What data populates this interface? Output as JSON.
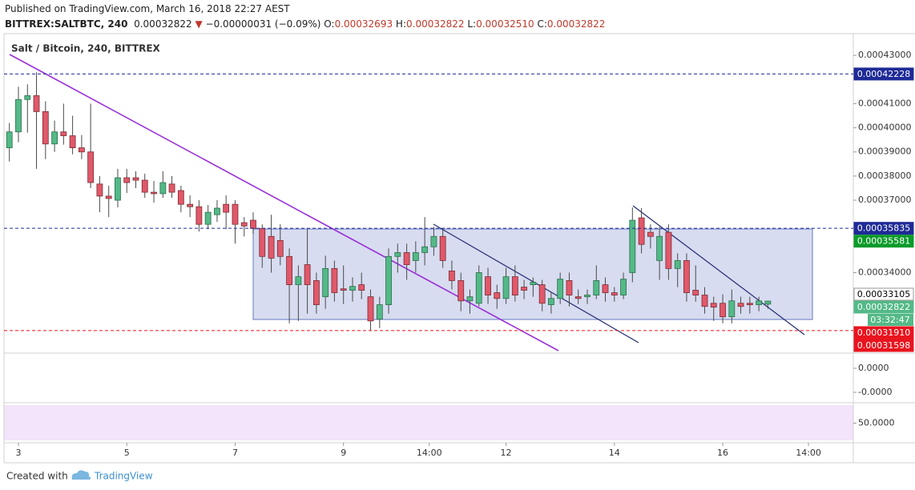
{
  "header": {
    "published": "Published on TradingView.com, March 16, 2018 22:27 AEST",
    "symbol": "BITTREX:SALTBTC, 240",
    "last": "0.00032822",
    "arrow": "▼",
    "change": "−0.00000031 (−0.09%)",
    "ohlc": [
      {
        "key": "O:",
        "value": "0.00032693"
      },
      {
        "key": "H:",
        "value": "0.00032822"
      },
      {
        "key": "L:",
        "value": "0.00032510"
      },
      {
        "key": "C:",
        "value": "0.00032822"
      }
    ]
  },
  "footer": {
    "created": "Created with",
    "brand": "TradingView"
  },
  "chart_data": [
    {
      "type": "candlestick",
      "title": "Salt / Bitcoin, 240, BITTREX",
      "up_color": "#53b987",
      "down_color": "#e0596a",
      "x": [
        -0.167,
        0,
        0.167,
        0.333,
        0.5,
        0.667,
        0.833,
        1,
        1.167,
        1.333,
        1.5,
        1.667,
        1.833,
        2,
        2.167,
        2.333,
        2.5,
        2.667,
        2.833,
        3,
        3.167,
        3.333,
        3.5,
        3.667,
        3.833,
        4,
        4.167,
        4.333,
        4.5,
        4.667,
        4.833,
        5,
        5.167,
        5.333,
        5.5,
        5.667,
        5.833,
        6,
        6.167,
        6.333,
        6.5,
        6.667,
        6.833,
        7,
        7.167,
        7.333,
        7.5,
        7.667,
        7.833,
        8,
        8.167,
        8.333,
        8.5,
        8.667,
        8.833,
        9,
        9.167,
        9.333,
        9.5,
        9.667,
        9.833,
        10,
        10.167,
        10.333,
        10.5,
        10.667,
        10.833,
        11,
        11.167,
        11.333,
        11.5,
        11.667,
        11.833,
        12,
        12.167,
        12.333,
        12.5,
        12.667,
        12.833,
        13,
        13.167,
        13.333,
        13.5,
        13.667,
        13.833
      ],
      "open": [
        0.0003917,
        0.0003983,
        0.0004117,
        0.0004133,
        0.0004067,
        0.0003933,
        0.0003983,
        0.0003967,
        0.0003917,
        0.00039,
        0.0003767,
        0.0003717,
        0.00037,
        0.0003793,
        0.0003793,
        0.0003783,
        0.0003733,
        0.0003727,
        0.0003767,
        0.000374,
        0.0003683,
        0.0003673,
        0.00036,
        0.000364,
        0.0003683,
        0.0003683,
        0.0003607,
        0.0003617,
        0.0003583,
        0.000355,
        0.0003533,
        0.0003467,
        0.000335,
        0.0003433,
        0.0003367,
        0.00033,
        0.0003417,
        0.0003333,
        0.0003327,
        0.000335,
        0.00033,
        0.0003207,
        0.0003267,
        0.0003467,
        0.0003483,
        0.000345,
        0.0003483,
        0.0003507,
        0.000355,
        0.0003407,
        0.0003367,
        0.0003283,
        0.0003273,
        0.0003383,
        0.0003317,
        0.0003293,
        0.0003383,
        0.000334,
        0.000335,
        0.000335,
        0.0003267,
        0.0003293,
        0.0003367,
        0.00033,
        0.00033,
        0.0003307,
        0.000335,
        0.0003317,
        0.0003307,
        0.00034,
        0.0003627,
        0.0003567,
        0.000345,
        0.0003567,
        0.0003417,
        0.000345,
        0.0003327,
        0.0003307,
        0.0003273,
        0.0003273,
        0.0003217,
        0.0003273,
        0.0003273,
        0.0003267,
        0.00032693
      ],
      "high": [
        0.000402,
        0.000417,
        0.000418,
        0.000423,
        0.000411,
        0.000403,
        0.00041,
        0.000405,
        0.000397,
        0.00041,
        0.00038,
        0.000376,
        0.000383,
        0.000383,
        0.000382,
        0.000381,
        0.000378,
        0.000382,
        0.00038,
        0.000376,
        0.000372,
        0.00037,
        0.000368,
        0.00037,
        0.000372,
        0.00037,
        0.000363,
        0.000365,
        0.00036,
        0.000364,
        0.00036,
        0.00035,
        0.000343,
        0.000358,
        0.00034,
        0.000347,
        0.000345,
        0.000343,
        0.000338,
        0.00034,
        0.000333,
        0.00033,
        0.00035,
        0.000352,
        0.000352,
        0.000353,
        0.000363,
        0.000359,
        0.000358,
        0.000345,
        0.00034,
        0.000333,
        0.000343,
        0.000342,
        0.000335,
        0.000342,
        0.000343,
        0.000337,
        0.000338,
        0.000337,
        0.000332,
        0.00034,
        0.00034,
        0.000333,
        0.000333,
        0.000343,
        0.000338,
        0.000334,
        0.00034,
        0.000367,
        0.0003667,
        0.00036,
        0.000359,
        0.00036,
        0.000348,
        0.000348,
        0.000343,
        0.000334,
        0.00033,
        0.000331,
        0.000333,
        0.00033,
        0.00033,
        0.00033,
        0.00032822
      ],
      "low": [
        0.000386,
        0.000394,
        0.000398,
        0.000383,
        0.000387,
        0.00039,
        0.000393,
        0.000389,
        0.000387,
        0.000375,
        0.000365,
        0.000363,
        0.000367,
        0.000373,
        0.000375,
        0.000371,
        0.000369,
        0.000371,
        0.000371,
        0.000365,
        0.000363,
        0.000357,
        0.000358,
        0.000361,
        0.000358,
        0.000352,
        0.000355,
        0.000356,
        0.000342,
        0.00034,
        0.000343,
        0.000319,
        0.00032,
        0.000323,
        0.000323,
        0.000325,
        0.000328,
        0.000327,
        0.000328,
        0.000329,
        0.000316,
        0.000317,
        0.000323,
        0.00034,
        0.000337,
        0.00034,
        0.000343,
        0.000347,
        0.000342,
        0.000333,
        0.000324,
        0.000323,
        0.000326,
        0.000327,
        0.000325,
        0.000327,
        0.000328,
        0.000329,
        0.00033,
        0.000324,
        0.000323,
        0.000327,
        0.000326,
        0.000327,
        0.000327,
        0.000329,
        0.000328,
        0.000328,
        0.000329,
        0.000336,
        0.000348,
        0.00035,
        0.000337,
        0.000337,
        0.000334,
        0.000328,
        0.000328,
        0.000323,
        0.00032,
        0.000319,
        0.000319,
        0.000323,
        0.000323,
        0.000324,
        0.0003251
      ],
      "close": [
        0.0003983,
        0.0004117,
        0.0004133,
        0.0004067,
        0.0003933,
        0.0003983,
        0.0003967,
        0.0003917,
        0.00039,
        0.0003773,
        0.0003717,
        0.0003707,
        0.0003793,
        0.0003773,
        0.0003783,
        0.0003733,
        0.0003727,
        0.0003773,
        0.0003733,
        0.0003683,
        0.0003673,
        0.00036,
        0.000365,
        0.0003667,
        0.000365,
        0.00036,
        0.0003593,
        0.0003583,
        0.0003467,
        0.000346,
        0.0003467,
        0.000335,
        0.0003383,
        0.000335,
        0.0003267,
        0.0003417,
        0.0003317,
        0.0003327,
        0.0003343,
        0.0003327,
        0.00032,
        0.0003267,
        0.0003467,
        0.0003483,
        0.0003433,
        0.0003483,
        0.0003507,
        0.000355,
        0.000345,
        0.0003367,
        0.0003283,
        0.00033,
        0.00034,
        0.0003307,
        0.0003293,
        0.0003383,
        0.0003307,
        0.0003327,
        0.000336,
        0.0003273,
        0.0003293,
        0.0003373,
        0.0003307,
        0.0003293,
        0.0003307,
        0.0003367,
        0.0003317,
        0.0003307,
        0.0003373,
        0.0003617,
        0.0003517,
        0.000355,
        0.000355,
        0.0003417,
        0.000345,
        0.0003317,
        0.0003307,
        0.000326,
        0.0003257,
        0.0003217,
        0.0003283,
        0.000326,
        0.0003267,
        0.0003283,
        0.00032822
      ],
      "xlim": [
        -0.266,
        15.41
      ],
      "ylim": [
        0.000307,
        0.000439
      ],
      "grid": false,
      "xticks": [
        {
          "value": 0,
          "label": "3"
        },
        {
          "value": 2,
          "label": "5"
        },
        {
          "value": 4,
          "label": "7"
        },
        {
          "value": 6,
          "label": "9"
        },
        {
          "value": 7.583,
          "label": "14:00"
        },
        {
          "value": 9,
          "label": "12"
        },
        {
          "value": 11,
          "label": "14"
        },
        {
          "value": 13,
          "label": "16"
        },
        {
          "value": 14.583,
          "label": "14:00"
        }
      ],
      "yticks": [
        {
          "value": 0.00043,
          "label": "0.00043000"
        },
        {
          "value": 0.00041,
          "label": "0.00041000"
        },
        {
          "value": 0.0004,
          "label": "0.00040000"
        },
        {
          "value": 0.00039,
          "label": "0.00039000"
        },
        {
          "value": 0.00038,
          "label": "0.00038000"
        },
        {
          "value": 0.00037,
          "label": "0.00037000"
        },
        {
          "value": 0.00034,
          "label": "0.00034000"
        }
      ],
      "price_tags": [
        {
          "value": 0.00042228,
          "color": "#1e2a96",
          "line": true
        },
        {
          "value": 0.00035835,
          "color": "#1e2a96",
          "line": true
        },
        {
          "value": 0.00035581,
          "color": "#0b9b2a"
        },
        {
          "value": 0.00033105,
          "color": "#ffffff"
        },
        {
          "value": 0.00032822,
          "color": "#53b987",
          "countdown": "03:32:47"
        },
        {
          "value": 0.0003191,
          "label": "0.00031910",
          "color": "#e8141e"
        },
        {
          "value": 0.00031598,
          "color": "#e8141e",
          "line": true
        }
      ]
    },
    {
      "type": "line",
      "ylim": [
        -1.4e-06,
        6e-07
      ],
      "yticks": [
        {
          "value": 0,
          "label": "0.0000"
        },
        {
          "value": -1e-06,
          "label": "-0.0000"
        }
      ]
    },
    {
      "type": "line",
      "ylim": [
        27,
        73
      ],
      "yticks": [
        {
          "value": 50,
          "label": "50.0000"
        }
      ]
    }
  ]
}
